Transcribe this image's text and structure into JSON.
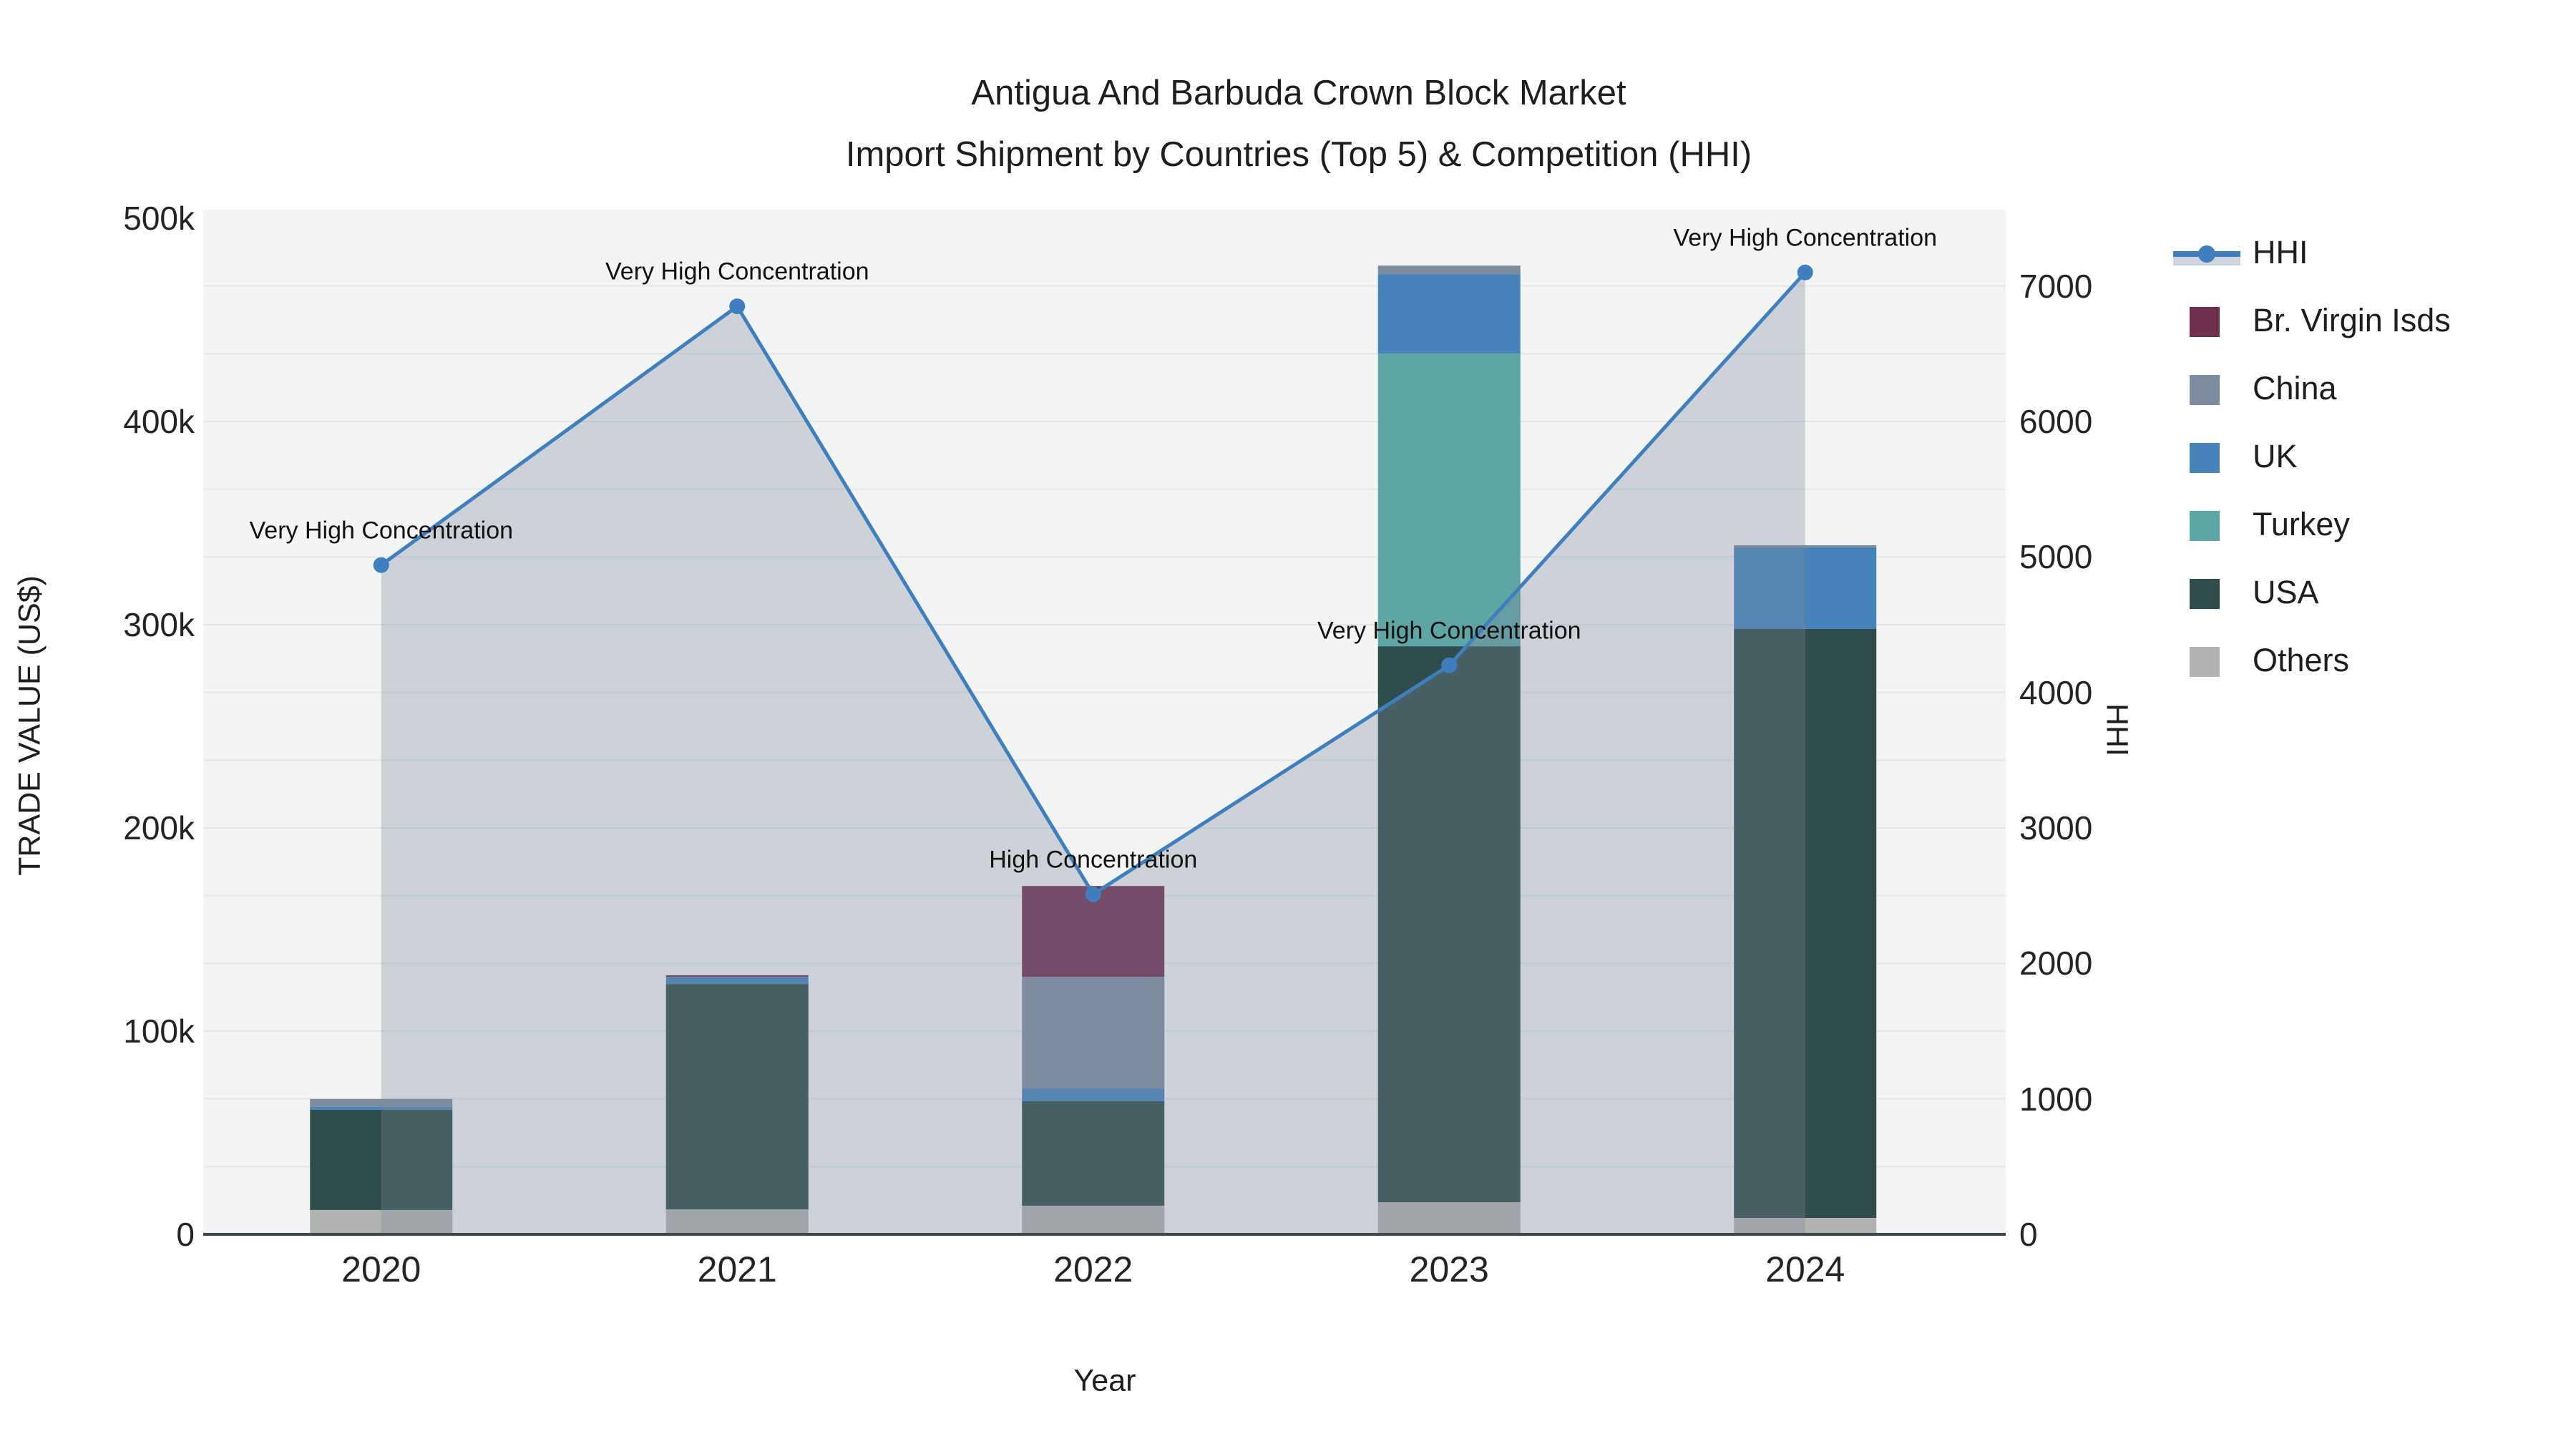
{
  "title": {
    "line1": "Antigua And Barbuda Crown Block Market",
    "line2": "Import Shipment by Countries (Top 5) & Competition (HHI)"
  },
  "axes": {
    "left": {
      "title": "TRADE VALUE (US$)",
      "ticks": [
        "500k",
        "400k",
        "300k",
        "200k",
        "100k",
        "0"
      ]
    },
    "right": {
      "title": "HHI",
      "ticks": [
        "7000",
        "6000",
        "5000",
        "4000",
        "3000",
        "2000",
        "1000",
        "0"
      ]
    },
    "x": {
      "title": "Year",
      "ticks": [
        "2020",
        "2021",
        "2022",
        "2023",
        "2024"
      ]
    }
  },
  "legend": {
    "items": [
      {
        "label": "HHI",
        "type": "line",
        "color": "#3f7fbe"
      },
      {
        "label": "Br. Virgin Isds",
        "type": "square",
        "color": "#702f4f"
      },
      {
        "label": "China",
        "type": "square",
        "color": "#7d8c9c"
      },
      {
        "label": "UK",
        "type": "square",
        "color": "#4683ba"
      },
      {
        "label": "Turkey",
        "type": "square",
        "color": "#5ea6a4"
      },
      {
        "label": "USA",
        "type": "square",
        "color": "#2e4d4c"
      },
      {
        "label": "Others",
        "type": "square",
        "color": "#b0b3af"
      }
    ]
  },
  "chart_data": {
    "type": "bar+line",
    "title": "Antigua And Barbuda Crown Block Market — Import Shipment by Countries (Top 5) & Competition (HHI)",
    "categories": [
      "2020",
      "2021",
      "2022",
      "2023",
      "2024"
    ],
    "xlabel": "Year",
    "ylabel": "TRADE VALUE (US$)",
    "y2label": "HHI",
    "ylim_left": [
      0,
      500000
    ],
    "ylim_right": [
      0,
      7500
    ],
    "grid": true,
    "legend_position": "right",
    "stack_order_bottom_to_top": [
      "Others",
      "USA",
      "Turkey",
      "UK",
      "China",
      "Br. Virgin Isds"
    ],
    "series": [
      {
        "name": "Others",
        "color": "#b0b3af",
        "values": [
          12000,
          12300,
          14100,
          15800,
          8100
        ]
      },
      {
        "name": "USA",
        "color": "#2e4d4c",
        "values": [
          49300,
          110900,
          51400,
          273600,
          289800
        ]
      },
      {
        "name": "Turkey",
        "color": "#5ea6a4",
        "values": [
          0,
          0,
          0,
          144000,
          0
        ]
      },
      {
        "name": "UK",
        "color": "#4683ba",
        "values": [
          1400,
          3500,
          6300,
          39100,
          40100
        ]
      },
      {
        "name": "China",
        "color": "#7d8c9c",
        "values": [
          3900,
          0,
          54900,
          4200,
          1100
        ]
      },
      {
        "name": "Br. Virgin Isds",
        "color": "#702f4f",
        "values": [
          0,
          800,
          44700,
          0,
          0
        ]
      }
    ],
    "line_series": {
      "name": "HHI",
      "color": "#3f7fbe",
      "fill_color": "rgba(125,138,160,0.32)",
      "values": [
        4940,
        6850,
        2510,
        4200,
        7100
      ],
      "annotations": [
        "Very High Concentration",
        "Very High Concentration",
        "High Concentration",
        "Very High Concentration",
        "Very High Concentration"
      ]
    }
  }
}
